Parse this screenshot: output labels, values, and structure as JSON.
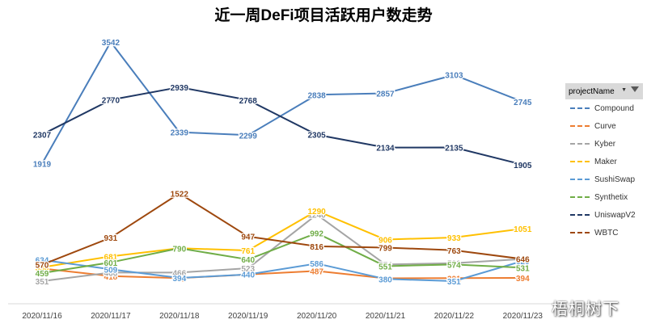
{
  "chart_data": {
    "type": "line",
    "title": "近一周DeFi项目活跃用户数走势",
    "categories": [
      "2020/11/16",
      "2020/11/17",
      "2020/11/18",
      "2020/11/19",
      "2020/11/20",
      "2020/11/21",
      "2020/11/22",
      "2020/11/23"
    ],
    "xlabel": "",
    "ylabel": "",
    "ylim": [
      0,
      3800
    ],
    "grid": false,
    "legend_title": "projectName",
    "legend_position": "right",
    "series": [
      {
        "name": "Compound",
        "color": "#4a7ebb",
        "values": [
          1919,
          3542,
          2339,
          2299,
          2838,
          2857,
          3103,
          2745
        ]
      },
      {
        "name": "Curve",
        "color": "#ed7d31",
        "values": [
          520,
          418,
          391,
          440,
          487,
          389,
          391,
          394
        ]
      },
      {
        "name": "Kyber",
        "color": "#a5a5a5",
        "values": [
          351,
          466,
          466,
          523,
          1240,
          574,
          591,
          646
        ]
      },
      {
        "name": "Maker",
        "color": "#ffc000",
        "values": [
          536,
          681,
          790,
          761,
          1290,
          906,
          933,
          1051
        ]
      },
      {
        "name": "SushiSwap",
        "color": "#5b9bd5",
        "values": [
          634,
          509,
          394,
          440,
          586,
          380,
          351,
          620
        ]
      },
      {
        "name": "Synthetix",
        "color": "#70ad47",
        "values": [
          459,
          601,
          790,
          640,
          992,
          551,
          574,
          531
        ]
      },
      {
        "name": "UniswapV2",
        "color": "#203864",
        "values": [
          2307,
          2770,
          2939,
          2768,
          2305,
          2134,
          2135,
          1905
        ]
      },
      {
        "name": "WBTC",
        "color": "#9e480e",
        "values": [
          570,
          931,
          1522,
          947,
          816,
          799,
          763,
          646
        ]
      }
    ]
  },
  "watermark": "梧桐树下"
}
